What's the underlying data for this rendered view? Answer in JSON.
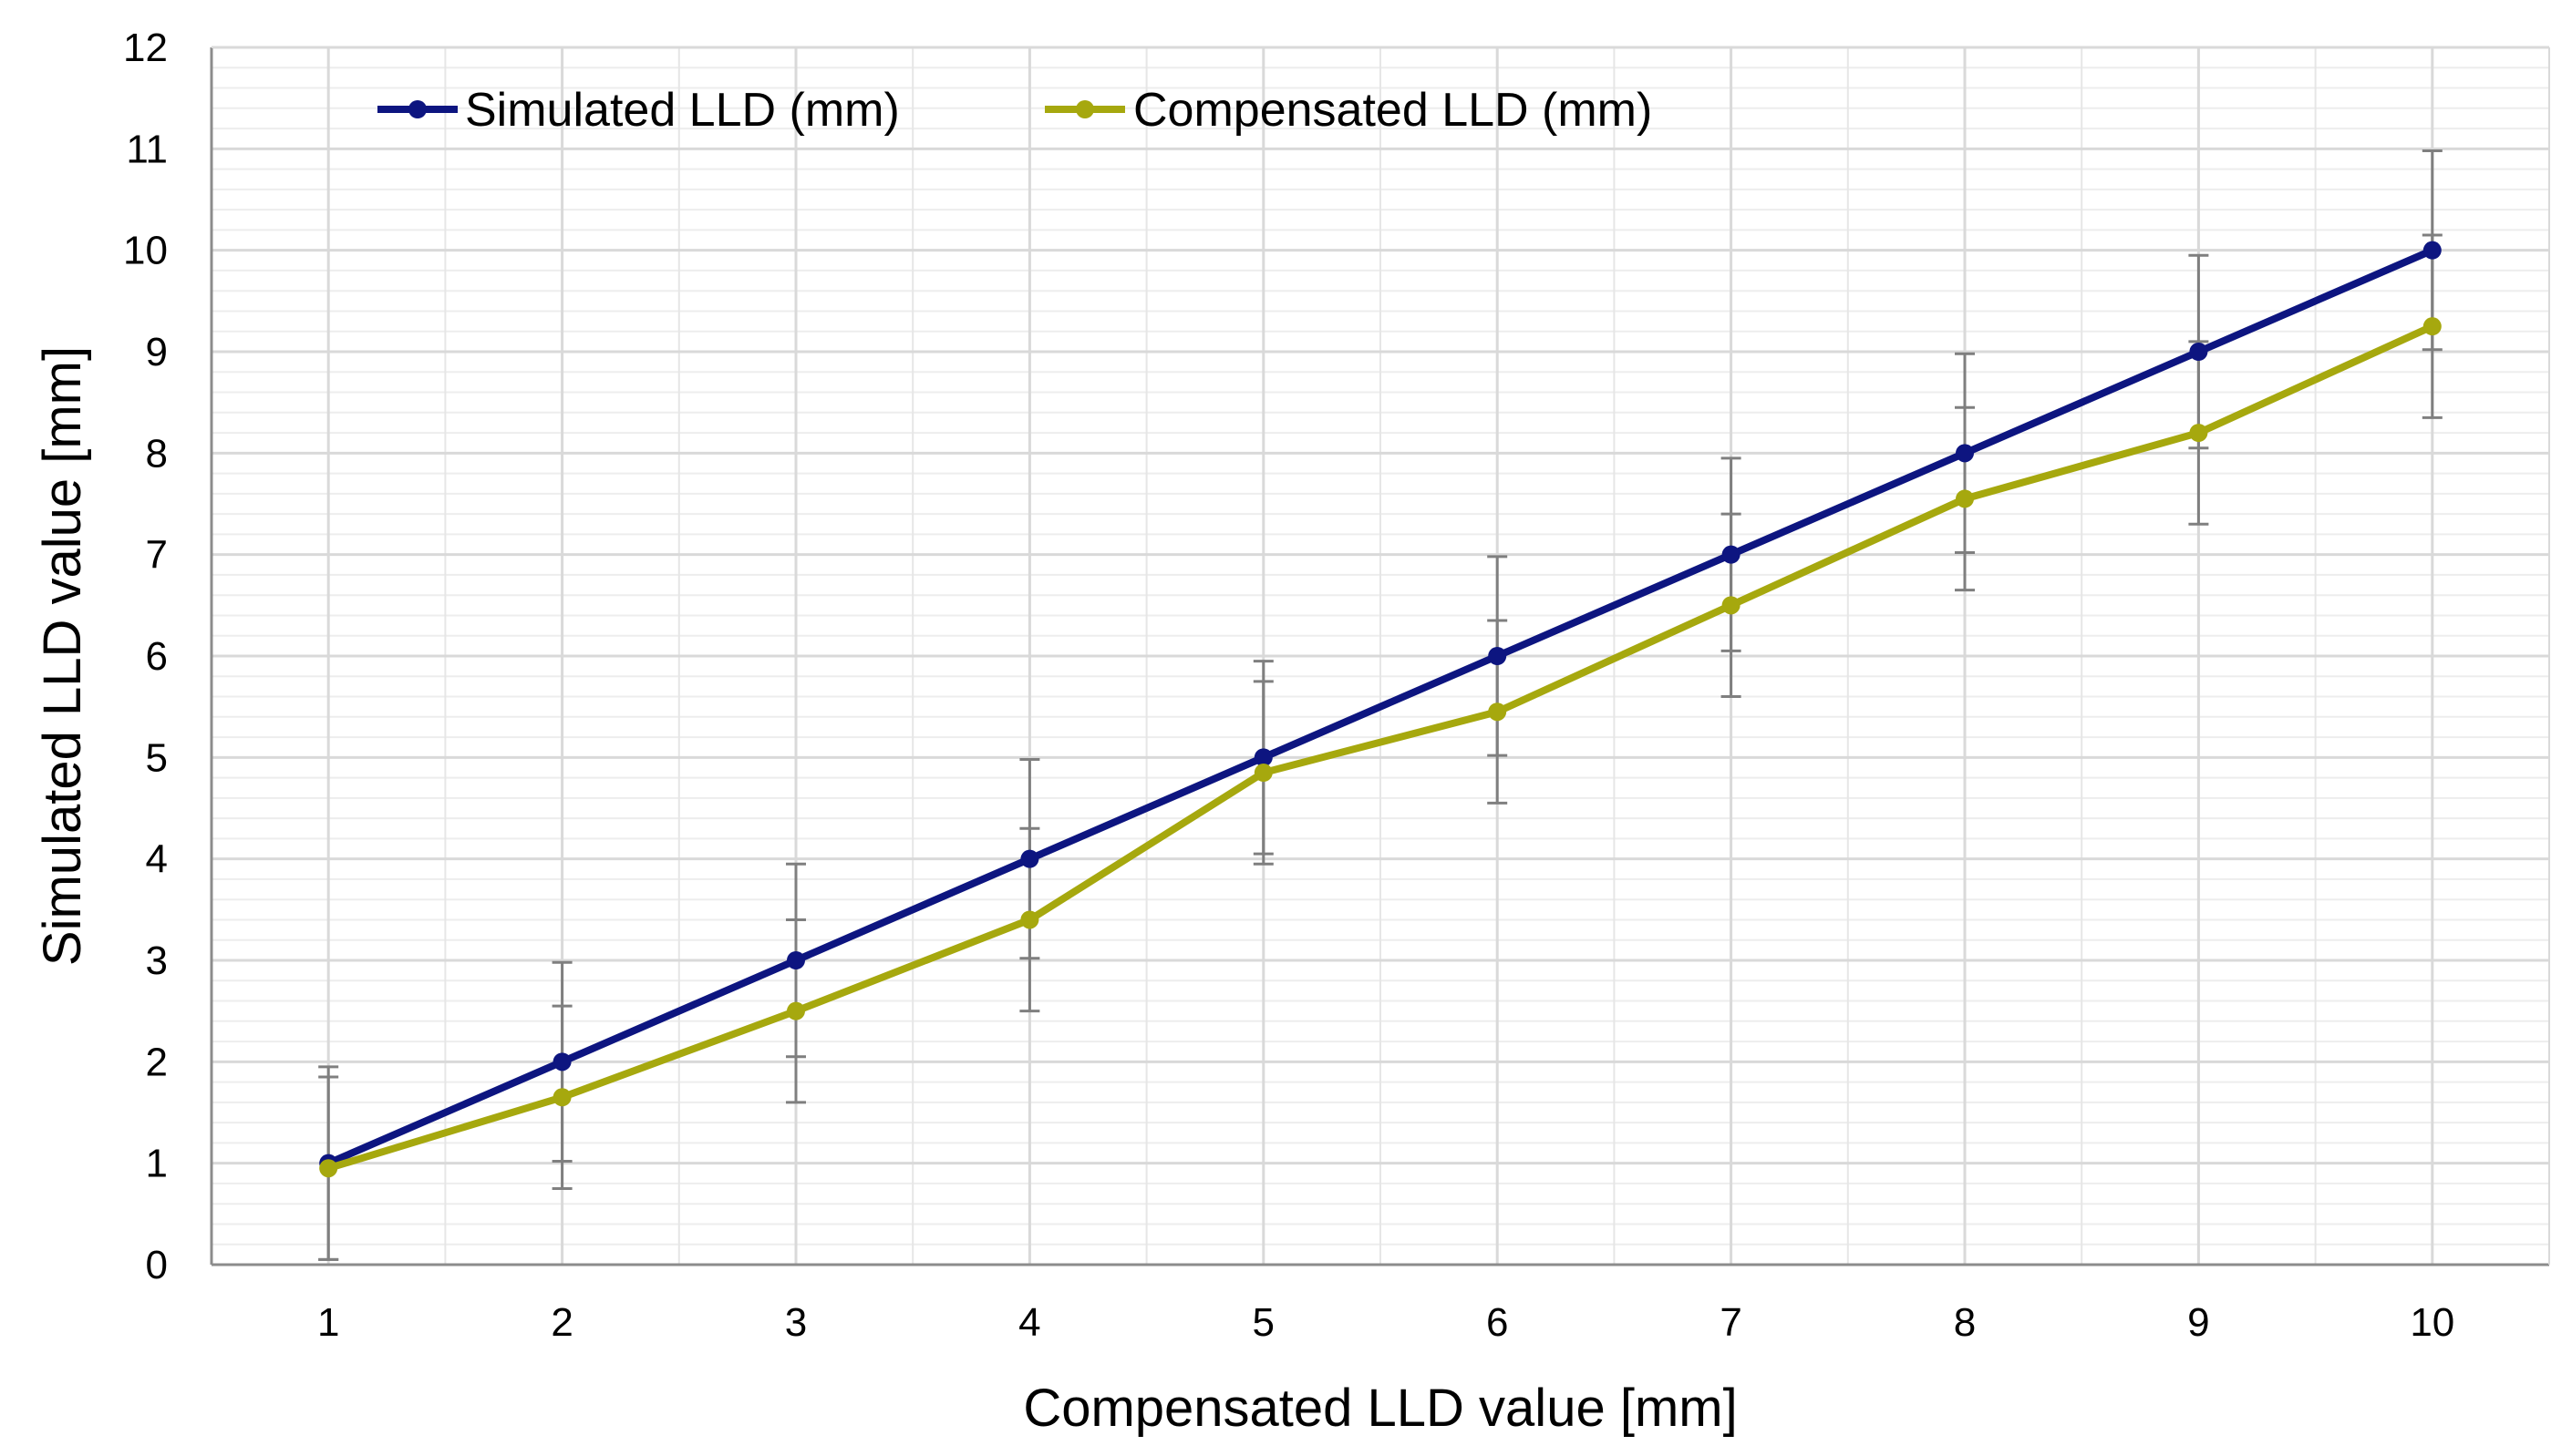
{
  "chart_data": {
    "type": "line",
    "title": "",
    "xlabel": "Compensated LLD value [mm]",
    "ylabel": "Simulated LLD value [mm]",
    "x": [
      1,
      2,
      3,
      4,
      5,
      6,
      7,
      8,
      9,
      10
    ],
    "xticks": [
      "1",
      "2",
      "3",
      "4",
      "5",
      "6",
      "7",
      "8",
      "9",
      "10"
    ],
    "ylim": [
      0,
      12
    ],
    "yticks": [
      "0",
      "1",
      "2",
      "3",
      "4",
      "5",
      "6",
      "7",
      "8",
      "9",
      "10",
      "11",
      "12"
    ],
    "grid": true,
    "legend_position": "top-left",
    "series": [
      {
        "name": "Simulated LLD (mm)",
        "color": "#0d1580",
        "values": [
          1.0,
          2.0,
          3.0,
          4.0,
          5.0,
          6.0,
          7.0,
          8.0,
          9.0,
          10.0
        ],
        "error": [
          0.95,
          0.98,
          0.95,
          0.98,
          0.95,
          0.98,
          0.95,
          0.98,
          0.95,
          0.98
        ]
      },
      {
        "name": "Compensated LLD (mm)",
        "color": "#a6a80e",
        "values": [
          0.95,
          1.65,
          2.5,
          3.4,
          4.85,
          5.45,
          6.5,
          7.55,
          8.2,
          9.25
        ],
        "error": [
          0.9,
          0.9,
          0.9,
          0.9,
          0.9,
          0.9,
          0.9,
          0.9,
          0.9,
          0.9
        ]
      }
    ],
    "error_bar_color": "#7f7f7f"
  }
}
